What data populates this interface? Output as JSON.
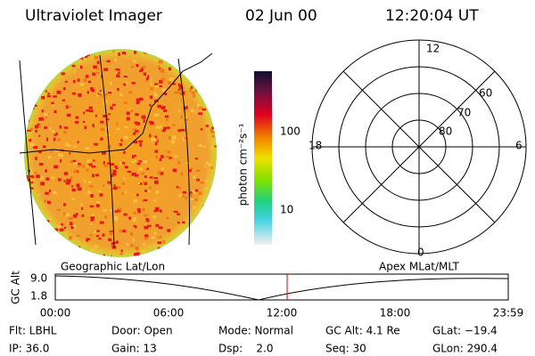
{
  "header": {
    "instrument": "Ultraviolet Imager",
    "date": "02 Jun 00",
    "time": "12:20:04 UT"
  },
  "colorbar": {
    "label": "photon cm⁻²s⁻¹",
    "ticks": [
      "100",
      "10"
    ]
  },
  "polar": {
    "mlt_labels": [
      "12",
      "6",
      "18",
      "0"
    ],
    "lat_labels": [
      "60",
      "70",
      "80"
    ]
  },
  "timeline": {
    "left_title": "Geographic Lat/Lon",
    "right_title": "Apex MLat/MLT",
    "axis_label": "GC Alt",
    "y_labels": [
      "9.0",
      "1.8"
    ],
    "x_labels": [
      "00:00",
      "06:00",
      "12:00",
      "18:00",
      "23:59"
    ]
  },
  "info": {
    "rows": [
      [
        "Flt: LBHL",
        "Door: Open",
        "Mode: Normal",
        "GC Alt: 4.1 Re",
        "GLat: −19.4"
      ],
      [
        "IP: 36.0",
        "Gain: 13",
        "Dsp:    2.0",
        "Seq: 30",
        "GLon: 290.4"
      ]
    ]
  }
}
